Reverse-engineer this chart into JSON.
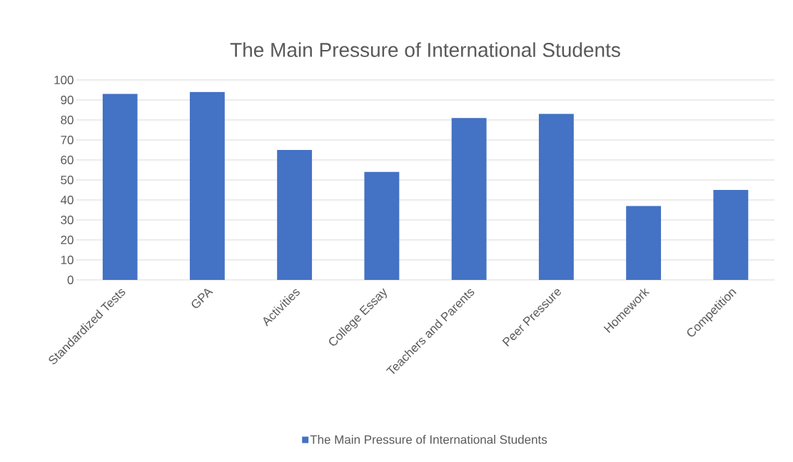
{
  "chart_data": {
    "type": "bar",
    "title": "The Main Pressure of International Students",
    "categories": [
      "Standardized Tests",
      "GPA",
      "Activities",
      "College Essay",
      "Teachers and Parents",
      "Peer Pressure",
      "Homework",
      "Competition"
    ],
    "series": [
      {
        "name": "The Main Pressure of International Students",
        "color": "#4472c4",
        "values": [
          93,
          94,
          65,
          54,
          81,
          83,
          37,
          45
        ]
      }
    ],
    "ylim": [
      0,
      100
    ],
    "yticks": [
      0,
      10,
      20,
      30,
      40,
      50,
      60,
      70,
      80,
      90,
      100
    ],
    "grid": "y",
    "legend": "bottom"
  }
}
